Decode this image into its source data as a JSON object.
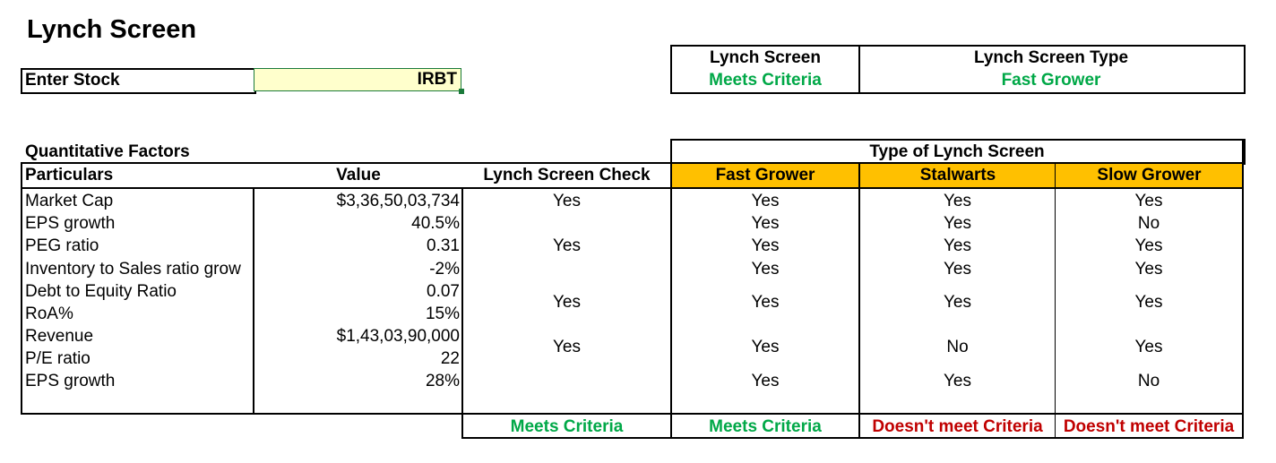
{
  "title": "Lynch Screen",
  "enter_stock": {
    "label": "Enter Stock",
    "value": "IRBT"
  },
  "summary": {
    "col1_header": "Lynch Screen",
    "col1_value": "Meets Criteria",
    "col2_header": "Lynch Screen Type",
    "col2_value": "Fast Grower"
  },
  "quantitative": {
    "title": "Quantitative Factors",
    "type_header": "Type of Lynch Screen",
    "headers": [
      "Particulars",
      "Value",
      "Lynch Screen Check",
      "Fast Grower",
      "Stalwarts",
      "Slow Grower"
    ],
    "rows": [
      {
        "particular": "Market Cap",
        "value": "$3,36,50,03,734"
      },
      {
        "particular": "EPS growth",
        "value": "40.5%"
      },
      {
        "particular": "PEG ratio",
        "value": "0.31"
      },
      {
        "particular": "Inventory to Sales ratio grow",
        "value": "-2%"
      },
      {
        "particular": "Debt to Equity Ratio",
        "value": "0.07"
      },
      {
        "particular": "RoA%",
        "value": "15%"
      },
      {
        "particular": "Revenue",
        "value": "$1,43,03,90,000"
      },
      {
        "particular": "P/E ratio",
        "value": "22"
      },
      {
        "particular": "EPS growth",
        "value": "28%"
      }
    ],
    "checks": [
      {
        "check": "Yes",
        "fast": "Yes",
        "stalwarts": "Yes",
        "slow": "Yes"
      },
      {
        "check": "",
        "fast": "Yes",
        "stalwarts": "Yes",
        "slow": "No"
      },
      {
        "check": "Yes",
        "fast": "Yes",
        "stalwarts": "Yes",
        "slow": "Yes"
      },
      {
        "check": "",
        "fast": "Yes",
        "stalwarts": "Yes",
        "slow": "Yes"
      },
      {
        "check": "Yes",
        "fast": "Yes",
        "stalwarts": "Yes",
        "slow": "Yes"
      },
      {
        "check": "Yes",
        "fast": "Yes",
        "stalwarts": "No",
        "slow": "Yes"
      },
      {
        "check": "",
        "fast": "Yes",
        "stalwarts": "Yes",
        "slow": "No"
      }
    ],
    "footer": [
      "Meets Criteria",
      "Meets Criteria",
      "Doesn't meet Criteria",
      "Doesn't meet Criteria"
    ]
  },
  "colors": {
    "green": "#00a847",
    "red": "#c00000",
    "orange": "#ffc000",
    "input_bg": "#ffffcc"
  }
}
